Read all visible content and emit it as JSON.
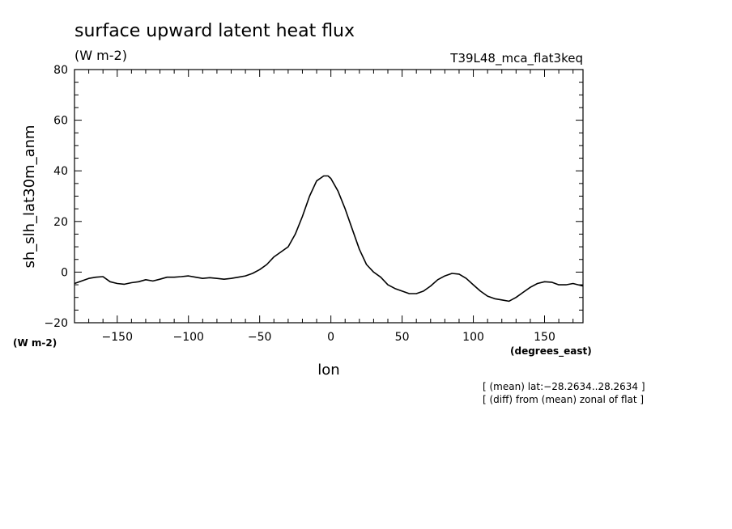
{
  "chart_data": {
    "type": "line",
    "title": "surface upward latent heat flux",
    "title_units": "(W m-2)",
    "experiment": "T39L48_mca_flat3keq",
    "ylabel": "sh_slh_lat30m_anm",
    "ylabel_units": "(W m-2)",
    "xlabel": "lon",
    "xlabel_units": "(degrees_east)",
    "xlim": [
      -180,
      177
    ],
    "ylim": [
      -20,
      80
    ],
    "xticks": [
      -150,
      -100,
      -50,
      0,
      50,
      100,
      150
    ],
    "xtick_labels": [
      "−150",
      "−100",
      "−50",
      "0",
      "50",
      "100",
      "150"
    ],
    "yticks": [
      -20,
      0,
      20,
      40,
      60,
      80
    ],
    "ytick_labels": [
      "−20",
      "0",
      "20",
      "40",
      "60",
      "80"
    ],
    "annotations": [
      "[ (mean) lat:−28.2634..28.2634 ]",
      "[ (diff) from (mean) zonal of flat ]"
    ],
    "series": [
      {
        "x": [
          -180,
          -175,
          -170,
          -165,
          -160,
          -155,
          -150,
          -145,
          -140,
          -135,
          -130,
          -125,
          -120,
          -115,
          -110,
          -105,
          -100,
          -95,
          -90,
          -85,
          -80,
          -75,
          -70,
          -65,
          -60,
          -55,
          -50,
          -45,
          -40,
          -35,
          -30,
          -25,
          -20,
          -15,
          -10,
          -5,
          -2,
          0,
          5,
          10,
          15,
          20,
          25,
          30,
          35,
          40,
          45,
          50,
          55,
          60,
          65,
          70,
          75,
          80,
          85,
          90,
          95,
          100,
          105,
          110,
          115,
          120,
          125,
          130,
          135,
          140,
          145,
          150,
          155,
          160,
          165,
          170,
          177
        ],
        "y": [
          -4.5,
          -3.5,
          -2.5,
          -2,
          -1.8,
          -3.8,
          -4.5,
          -4.8,
          -4.2,
          -3.8,
          -3,
          -3.5,
          -2.8,
          -2,
          -2,
          -1.8,
          -1.5,
          -2,
          -2.5,
          -2.2,
          -2.5,
          -2.8,
          -2.5,
          -2,
          -1.5,
          -0.5,
          1,
          3,
          6,
          8,
          10,
          15,
          22,
          30,
          36,
          38,
          38,
          37,
          32,
          25,
          17,
          9,
          3,
          0,
          -2,
          -5,
          -6.5,
          -7.5,
          -8.5,
          -8.5,
          -7.5,
          -5.5,
          -3,
          -1.5,
          -0.5,
          -0.8,
          -2.5,
          -5,
          -7.5,
          -9.5,
          -10.5,
          -11,
          -11.5,
          -10,
          -8,
          -6,
          -4.5,
          -3.8,
          -4,
          -5,
          -5,
          -4.5,
          -5.5
        ]
      }
    ]
  }
}
